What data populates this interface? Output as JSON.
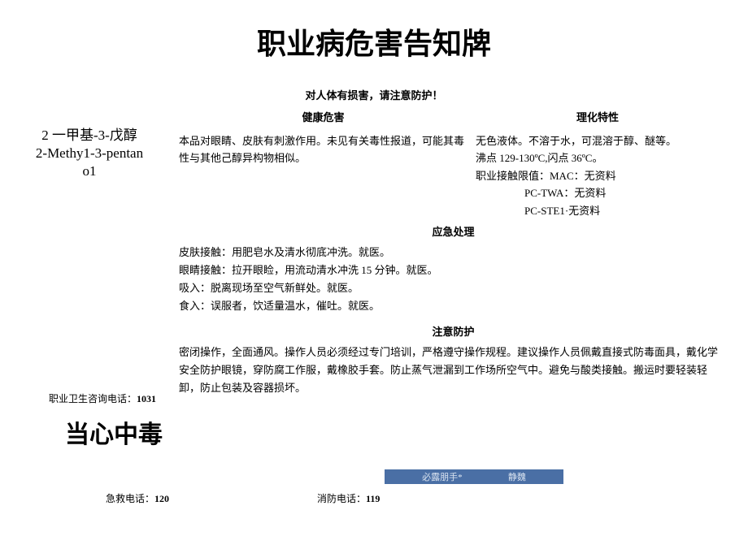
{
  "title": "职业病危害告知牌",
  "subtitle": "对人体有损害，请注意防护！",
  "chemical": {
    "name_cn": "2 一甲基-3-戊醇",
    "name_en_1": "2-Methy1-3-pentan",
    "name_en_2": "o1"
  },
  "sections": {
    "health_hazard": {
      "title": "健康危害",
      "content": "本品对眼睛、皮肤有刺激作用。未见有关毒性报道，可能其毒性与其他己醇异构物相似。"
    },
    "physical": {
      "title": "理化特性",
      "line1": "无色液体。不溶于水，可混溶于醇、醚等。",
      "line2": "沸点 129-130ºC,闪点 36ºC。",
      "line3": "职业接触限值：MAC：无资料",
      "line4": "PC-TWA：无资料",
      "line5": "PC-STE1·无资料"
    },
    "emergency": {
      "title": "应急处理",
      "l1": "皮肤接触：用肥皂水及清水彻底冲洗。就医。",
      "l2": "眼睛接触：拉开眼睑，用流动清水冲洗 15 分钟。就医。",
      "l3": "吸入：脱离现场至空气新鲜处。就医。",
      "l4": "食入：误服者，饮适量温水，催吐。就医。"
    },
    "protection": {
      "title": "注意防护",
      "content": "密闭操作，全面通风。操作人员必须经过专门培训，严格遵守操作规程。建议操作人员佩戴直接式防毒面具，戴化学安全防护眼镜，穿防腐工作服，戴橡胶手套。防止蒸气泄漏到工作场所空气中。避免与酸类接触。搬运时要轻装轻卸，防止包装及容器损坏。"
    }
  },
  "hotline_label": "职业卫生咨询电话：",
  "hotline_num": "1031",
  "warn": "当心中毒",
  "watermark_left": "必露朋手*",
  "watermark_right": "静魏",
  "phone_emergency_label": "急救电话：",
  "phone_emergency_num": "120",
  "phone_fire_label": "消防电话：",
  "phone_fire_num": "119"
}
